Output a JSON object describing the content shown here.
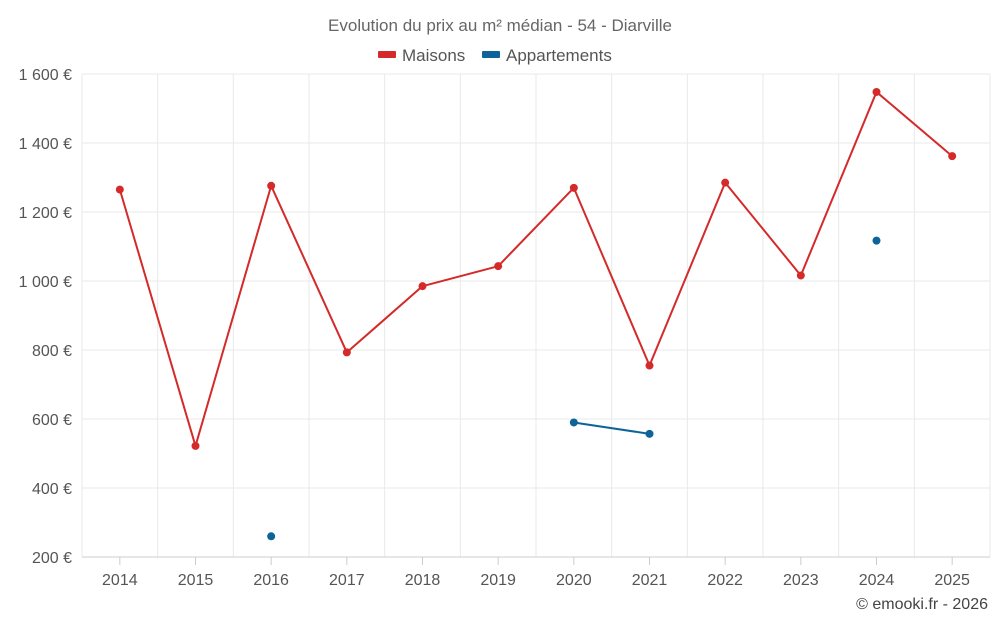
{
  "chart_data": {
    "type": "line",
    "title": "Evolution du prix au m² médian - 54 - Diarville",
    "x": [
      "2014",
      "2015",
      "2016",
      "2017",
      "2018",
      "2019",
      "2020",
      "2021",
      "2022",
      "2023",
      "2024",
      "2025"
    ],
    "ylim": [
      200,
      1600
    ],
    "yticks": [
      200,
      400,
      600,
      800,
      1000,
      1200,
      1400,
      1600
    ],
    "ytick_labels": [
      "200 €",
      "400 €",
      "600 €",
      "800 €",
      "1 000 €",
      "1 200 €",
      "1 400 €",
      "1 600 €"
    ],
    "grid": true,
    "legend_position": "top-center",
    "series": [
      {
        "name": "Maisons",
        "color": "#d42a2a",
        "values": [
          1265,
          522,
          1276,
          793,
          985,
          1043,
          1270,
          755,
          1285,
          1016,
          1548,
          1362
        ]
      },
      {
        "name": "Appartements",
        "color": "#0e6399",
        "values": [
          null,
          null,
          260,
          null,
          null,
          null,
          590,
          557,
          null,
          null,
          1117,
          null
        ]
      }
    ]
  },
  "credit": "© emooki.fr - 2026"
}
